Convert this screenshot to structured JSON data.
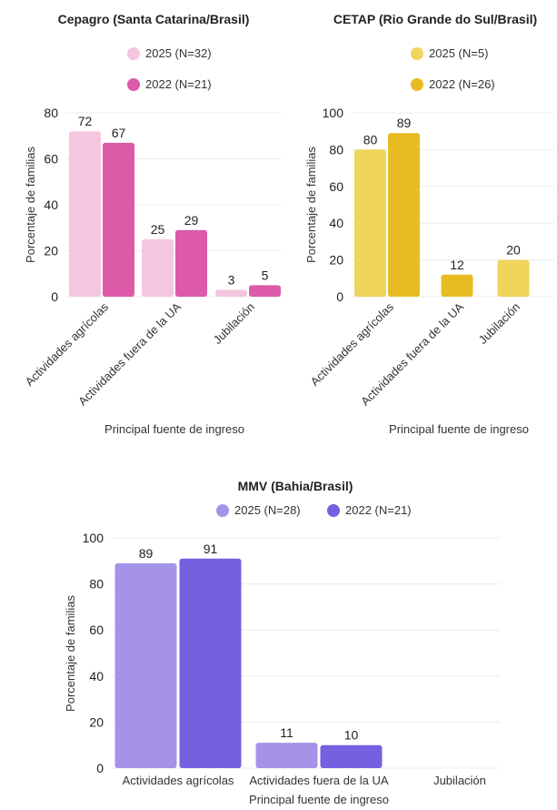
{
  "chart_data": [
    {
      "type": "bar",
      "title": "Cepagro (Santa Catarina/Brasil)",
      "xlabel": "Principal fuente de ingreso",
      "ylabel": "Porcentaje de familias",
      "categories": [
        "Actividades agrícolas",
        "Actividades fuera de la UA",
        "Jubilación"
      ],
      "series": [
        {
          "name": "2025 (N=32)",
          "color": "#f4c6df",
          "values": [
            72,
            25,
            3
          ]
        },
        {
          "name": "2022 (N=21)",
          "color": "#dc5aa8",
          "values": [
            67,
            29,
            5
          ]
        }
      ],
      "ylim": [
        0,
        80
      ],
      "yticks": [
        0,
        20,
        40,
        60,
        80
      ],
      "legend": "top-stacked"
    },
    {
      "type": "bar",
      "title": "CETAP (Rio Grande do Sul/Brasil)",
      "xlabel": "Principal fuente de ingreso",
      "ylabel": "Porcentaje de familias",
      "categories": [
        "Actividades agrícolas",
        "Actividades fuera de la UA",
        "Jubilación"
      ],
      "series": [
        {
          "name": "2025 (N=5)",
          "color": "#efd55c",
          "values": [
            80,
            null,
            20
          ]
        },
        {
          "name": "2022 (N=26)",
          "color": "#e8bb22",
          "values": [
            89,
            12,
            null
          ]
        }
      ],
      "ylim": [
        0,
        100
      ],
      "yticks": [
        0,
        20,
        40,
        60,
        80,
        100
      ],
      "legend": "top-stacked"
    },
    {
      "type": "bar",
      "title": "MMV (Bahia/Brasil)",
      "xlabel": "Principal fuente de ingreso",
      "ylabel": "Porcentaje de familias",
      "categories": [
        "Actividades agrícolas",
        "Actividades fuera de la UA",
        "Jubilación"
      ],
      "series": [
        {
          "name": "2025 (N=28)",
          "color": "#a593e8",
          "values": [
            89,
            11,
            null
          ]
        },
        {
          "name": "2022 (N=21)",
          "color": "#7660e0",
          "values": [
            91,
            10,
            null
          ]
        }
      ],
      "ylim": [
        0,
        100
      ],
      "yticks": [
        0,
        20,
        40,
        60,
        80,
        100
      ],
      "legend": "top-inline"
    }
  ]
}
